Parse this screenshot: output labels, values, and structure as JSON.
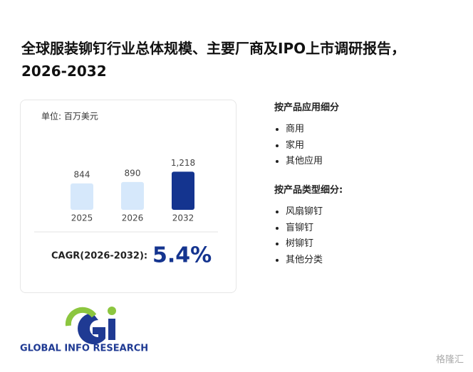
{
  "title": "全球服装铆钉行业总体规模、主要厂商及IPO上市调研报告，2026-2032",
  "chart_data": {
    "type": "bar",
    "unit_label": "单位: 百万美元",
    "categories": [
      "2025",
      "2026",
      "2032"
    ],
    "values": [
      844,
      890,
      1218
    ],
    "value_labels": [
      "844",
      "890",
      "1,218"
    ],
    "colors": [
      "#d6e8fb",
      "#d6e8fb",
      "#14348f"
    ]
  },
  "cagr": {
    "label": "CAGR(2026-2032):",
    "value": "5.4%"
  },
  "segments": [
    {
      "heading": "按产品应用细分",
      "items": [
        "商用",
        "家用",
        "其他应用"
      ]
    },
    {
      "heading": "按产品类型细分:",
      "items": [
        "风扇铆钉",
        "盲铆钉",
        "树铆钉",
        "其他分类"
      ]
    }
  ],
  "logo": {
    "text": "GLOBAL INFO RESEARCH"
  },
  "watermark": "格隆汇"
}
